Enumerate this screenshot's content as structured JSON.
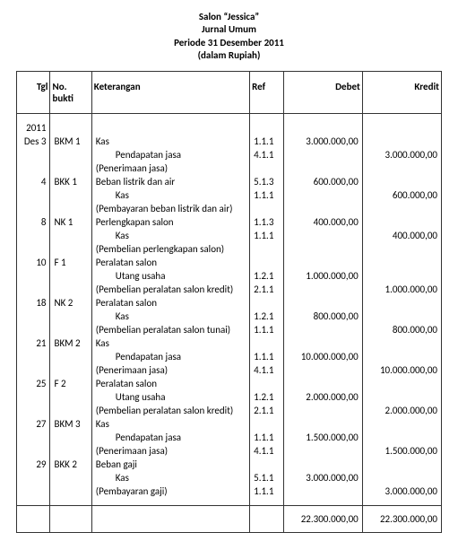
{
  "header": {
    "line1": "Salon “Jessica”",
    "line2": "Jurnal Umum",
    "line3": "Periode 31 Desember 2011",
    "line4": "(dalam Rupiah)"
  },
  "columns": {
    "tgl": "Tgl",
    "bukti": "No. bukti",
    "ket": "Keterangan",
    "ref": "Ref",
    "debet": "Debet",
    "kredit": "Kredit"
  },
  "year": "2011",
  "month": "Des",
  "entries": [
    {
      "day": "3",
      "bukti": "BKM 1",
      "lines": [
        {
          "ket": "Kas",
          "ref": "1.1.1",
          "deb": "3.000.000,00",
          "kre": ""
        },
        {
          "ket_indent": "Pendapatan jasa",
          "ref": "4.1.1",
          "deb": "",
          "kre": "3.000.000,00"
        },
        {
          "ket": "(Penerimaan jasa)"
        }
      ]
    },
    {
      "day": "4",
      "bukti": "BKK 1",
      "lines": [
        {
          "ket": "Beban listrik dan air",
          "ref": "5.1.3",
          "deb": "600.000,00",
          "kre": ""
        },
        {
          "ket_indent": "Kas",
          "ref": "1.1.1",
          "deb": "",
          "kre": "600.000,00"
        },
        {
          "ket": "(Pembayaran beban listrik dan air)"
        }
      ]
    },
    {
      "day": "8",
      "bukti": "NK 1",
      "lines": [
        {
          "ket": "Perlengkapan salon",
          "ref": "1.1.3",
          "deb": "400.000,00",
          "kre": ""
        },
        {
          "ket_indent": "Kas",
          "ref": "1.1.1",
          "deb": "",
          "kre": "400.000,00"
        },
        {
          "ket": "(Pembelian perlengkapan salon)"
        }
      ]
    },
    {
      "day": "10",
      "bukti": "F 1",
      "lines": [
        {
          "ket": "Peralatan salon"
        },
        {
          "ket_indent": "Utang usaha",
          "ref": "1.2.1",
          "deb": "1.000.000,00",
          "kre": ""
        },
        {
          "ket": "(Pembelian peralatan salon kredit)",
          "ref": "2.1.1",
          "deb": "",
          "kre": "1.000.000,00"
        }
      ]
    },
    {
      "day": "18",
      "bukti": "NK 2",
      "lines": [
        {
          "ket": "Peralatan salon"
        },
        {
          "ket_indent": "Kas",
          "ref": "1.2.1",
          "deb": "800.000,00",
          "kre": ""
        },
        {
          "ket": "(Pembelian peralatan salon tunai)",
          "ref": "1.1.1",
          "deb": "",
          "kre": "800.000,00"
        }
      ]
    },
    {
      "day": "21",
      "bukti": "BKM 2",
      "lines": [
        {
          "ket": "Kas"
        },
        {
          "ket_indent": "Pendapatan jasa",
          "ref": "1.1.1",
          "deb": "10.000.000,00",
          "kre": ""
        },
        {
          "ket": "(Penerimaan jasa)",
          "ref": "4.1.1",
          "deb": "",
          "kre": "10.000.000,00"
        }
      ]
    },
    {
      "day": "25",
      "bukti": "F 2",
      "lines": [
        {
          "ket": "Peralatan salon"
        },
        {
          "ket_indent": "Utang usaha",
          "ref": "1.2.1",
          "deb": "2.000.000,00",
          "kre": ""
        },
        {
          "ket": "(Pembelian peralatan salon kredit)",
          "ref": "2.1.1",
          "deb": "",
          "kre": "2.000.000,00"
        }
      ]
    },
    {
      "day": "27",
      "bukti": "BKM 3",
      "lines": [
        {
          "ket": "Kas"
        },
        {
          "ket_indent": "Pendapatan jasa",
          "ref": "1.1.1",
          "deb": "1.500.000,00",
          "kre": ""
        },
        {
          "ket": "(Penerimaan jasa)",
          "ref": "4.1.1",
          "deb": "",
          "kre": "1.500.000,00"
        }
      ]
    },
    {
      "day": "29",
      "bukti": "BKK 2",
      "lines": [
        {
          "ket": "Beban gaji"
        },
        {
          "ket_indent": "Kas",
          "ref": "5.1.1",
          "deb": "3.000.000,00",
          "kre": ""
        },
        {
          "ket": "(Pembayaran gaji)",
          "ref": "1.1.1",
          "deb": "",
          "kre": "3.000.000,00"
        }
      ]
    }
  ],
  "totals": {
    "debet": "22.300.000,00",
    "kredit": "22.300.000,00"
  }
}
